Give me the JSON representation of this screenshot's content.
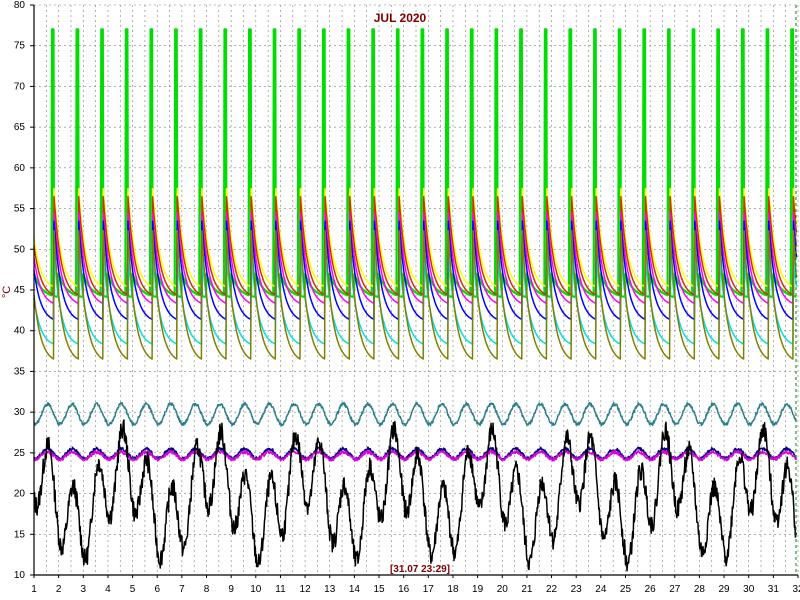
{
  "chart_data": {
    "type": "line",
    "title": "JUL 2020",
    "status_text": "[31.07 23:29]",
    "ylabel": "°C",
    "xlim": [
      1,
      32
    ],
    "ylim": [
      10,
      80
    ],
    "xticks": [
      "1",
      "2",
      "3",
      "4",
      "5",
      "6",
      "7",
      "8",
      "9",
      "10",
      "11",
      "12",
      "13",
      "14",
      "15",
      "16",
      "17",
      "18",
      "19",
      "20",
      "21",
      "22",
      "23",
      "24",
      "25",
      "26",
      "27",
      "28",
      "29",
      "30",
      "31",
      "32"
    ],
    "yticks": [
      "10",
      "15",
      "20",
      "25",
      "30",
      "35",
      "40",
      "45",
      "50",
      "55",
      "60",
      "65",
      "70",
      "75",
      "80"
    ],
    "grid": true,
    "colors": {
      "axis": "#000000",
      "grid": "#808080",
      "title": "#800000",
      "end_marker": "#008000"
    },
    "series": [
      {
        "color": "#00dd00",
        "kind": "spike",
        "base": 48,
        "peak": 77
      },
      {
        "color": "#ffff00",
        "kind": "cycle",
        "base": 45,
        "peak": 58
      },
      {
        "color": "#cc3300",
        "kind": "cycle",
        "base": 44,
        "peak": 57
      },
      {
        "color": "#ff00ff",
        "kind": "cycle",
        "base": 43,
        "peak": 55
      },
      {
        "color": "#00e0e0",
        "kind": "cycle",
        "base": 38,
        "peak": 50
      },
      {
        "color": "#0000ff",
        "kind": "cycle",
        "base": 41,
        "peak": 54
      },
      {
        "color": "#808000",
        "kind": "cycle",
        "base": 36,
        "peak": 53
      },
      {
        "color": "#2a7f8a",
        "kind": "wave",
        "base": 28.5,
        "peak": 31
      },
      {
        "color": "#000080",
        "kind": "wave",
        "base": 24.3,
        "peak": 25.5
      },
      {
        "color": "#dd00dd",
        "kind": "wave",
        "base": 24.2,
        "peak": 25.1
      },
      {
        "color": "#000000",
        "kind": "noise",
        "base": 15,
        "peak": 28
      }
    ]
  }
}
